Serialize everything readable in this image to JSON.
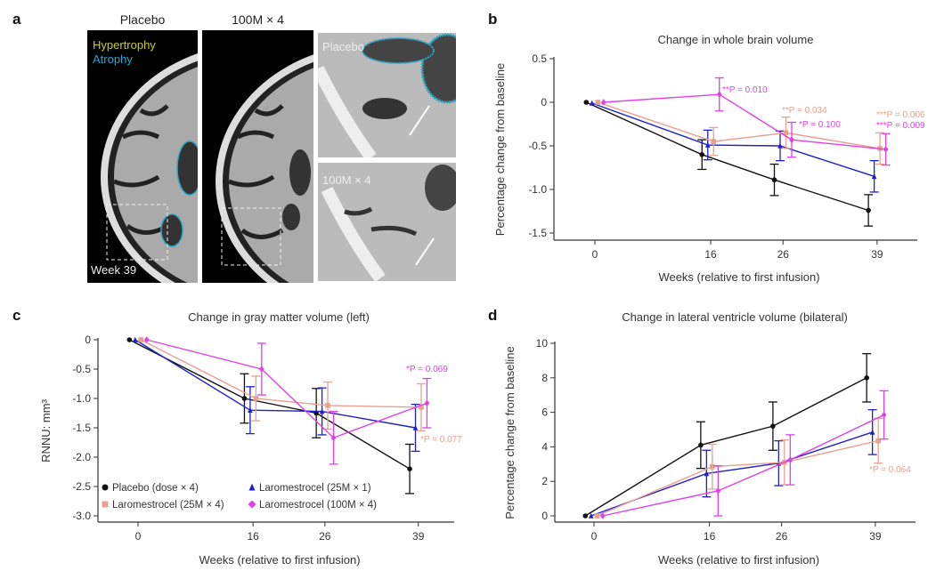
{
  "panel_a": {
    "label": "a",
    "titles": [
      "Placebo",
      "100M × 4"
    ],
    "legend_hypertrophy": "Hypertrophy",
    "legend_atrophy": "Atrophy",
    "week_label": "Week 39",
    "zoom_top_label": "Placebo",
    "zoom_bottom_label": "100M × 4",
    "colors": {
      "hypertrophy": "#c8c832",
      "atrophy": "#2aa6c8"
    }
  },
  "legend": [
    {
      "name": "Placebo (dose × 4)",
      "color": "#111111",
      "marker": "circle"
    },
    {
      "name": "Laromestrocel (25M × 1)",
      "color": "#2020c8",
      "marker": "triangle"
    },
    {
      "name": "Laromestrocel (25M × 4)",
      "color": "#e8a090",
      "marker": "square"
    },
    {
      "name": "Laromestrocel (100M × 4)",
      "color": "#e040e8",
      "marker": "diamond"
    }
  ],
  "chart_data": [
    {
      "panel": "b",
      "type": "line",
      "title": "Change in whole brain volume",
      "xlabel": "Weeks (relative to first infusion)",
      "ylabel": "Percentage change from baseline",
      "x": [
        0,
        16,
        26,
        39
      ],
      "xticks": [
        "0",
        "16",
        "26",
        "39"
      ],
      "yticks": [
        0.5,
        0,
        -0.5,
        -1.0,
        -1.5
      ],
      "ytick_labels": [
        "0.5",
        "0",
        "-0.5",
        "-1.0",
        "-1.5"
      ],
      "ylim": [
        -1.57,
        0.5
      ],
      "series": [
        {
          "name": "Placebo (dose × 4)",
          "values": [
            0,
            -0.6,
            -0.89,
            -1.24
          ],
          "errors": [
            0,
            0.17,
            0.18,
            0.18
          ]
        },
        {
          "name": "Laromestrocel (25M × 1)",
          "values": [
            -0.01,
            -0.49,
            -0.5,
            -0.85
          ],
          "errors": [
            0,
            0.17,
            0.17,
            0.18
          ]
        },
        {
          "name": "Laromestrocel (25M × 4)",
          "values": [
            0,
            -0.45,
            -0.35,
            -0.53
          ],
          "errors": [
            0,
            0.16,
            0.18,
            0.18
          ]
        },
        {
          "name": "Laromestrocel (100M × 4)",
          "values": [
            0,
            0.09,
            -0.43,
            -0.54
          ],
          "errors": [
            0,
            0.19,
            0.2,
            0.18
          ]
        }
      ],
      "annotations": [
        {
          "text": "**P = 0.010",
          "series": 3
        },
        {
          "text": "**P = 0.034",
          "series": 2
        },
        {
          "text": "*P = 0.100",
          "series": 3
        },
        {
          "text": "***P = 0.006",
          "series": 2
        },
        {
          "text": "***P = 0.009",
          "series": 3
        }
      ]
    },
    {
      "panel": "c",
      "type": "line",
      "title": "Change in gray matter volume (left)",
      "xlabel": "Weeks (relative to first infusion)",
      "ylabel": "RNNU: mm³",
      "x": [
        0,
        16,
        26,
        39
      ],
      "xticks": [
        "0",
        "16",
        "26",
        "39"
      ],
      "yticks": [
        0,
        -0.5,
        -1.0,
        -1.5,
        -2.0,
        -2.5,
        -3.0
      ],
      "ytick_labels": [
        "0",
        "-0.5",
        "-1.0",
        "-1.5",
        "-2.0",
        "-2.5",
        "-3.0"
      ],
      "ylim": [
        -3.1,
        0
      ],
      "legend_position": "bottom-left",
      "series": [
        {
          "name": "Placebo (dose × 4)",
          "values": [
            0,
            -1.0,
            -1.25,
            -2.2
          ],
          "errors": [
            0,
            0.42,
            0.42,
            0.42
          ]
        },
        {
          "name": "Laromestrocel (25M × 1)",
          "values": [
            0,
            -1.2,
            -1.22,
            -1.5
          ],
          "errors": [
            0,
            0.4,
            0.4,
            0.4
          ]
        },
        {
          "name": "Laromestrocel (25M × 4)",
          "values": [
            0,
            -1.0,
            -1.12,
            -1.15
          ],
          "errors": [
            0,
            0.38,
            0.4,
            0.4
          ]
        },
        {
          "name": "Laromestrocel (100M × 4)",
          "values": [
            0,
            -0.5,
            -1.67,
            -1.08
          ],
          "errors": [
            0,
            0.44,
            0.45,
            0.42
          ]
        }
      ],
      "annotations": [
        {
          "text": "*P = 0.069",
          "series": 3
        },
        {
          "text": "*P = 0.077",
          "series": 2
        }
      ]
    },
    {
      "panel": "d",
      "type": "line",
      "title": "Change in lateral ventricle volume (bilateral)",
      "xlabel": "Weeks (relative to first infusion)",
      "ylabel": "Percentage change from baseline",
      "x": [
        0,
        16,
        26,
        39
      ],
      "xticks": [
        "0",
        "16",
        "26",
        "39"
      ],
      "yticks": [
        10,
        8,
        6,
        4,
        2,
        0
      ],
      "ytick_labels": [
        "10",
        "8",
        "6",
        "4",
        "2",
        "0"
      ],
      "ylim": [
        -0.4,
        10
      ],
      "series": [
        {
          "name": "Placebo (dose × 4)",
          "values": [
            0,
            4.1,
            5.2,
            8.0
          ],
          "errors": [
            0,
            1.35,
            1.4,
            1.4
          ]
        },
        {
          "name": "Laromestrocel (25M × 1)",
          "values": [
            0,
            2.45,
            3.05,
            4.85
          ],
          "errors": [
            0,
            1.35,
            1.3,
            1.3
          ]
        },
        {
          "name": "Laromestrocel (25M × 4)",
          "values": [
            0,
            2.85,
            3.1,
            4.35
          ],
          "errors": [
            0,
            1.3,
            1.3,
            1.3
          ]
        },
        {
          "name": "Laromestrocel (100M × 4)",
          "values": [
            0,
            1.45,
            3.25,
            5.85
          ],
          "errors": [
            0,
            1.45,
            1.45,
            1.4
          ]
        }
      ],
      "annotations": [
        {
          "text": "*P = 0.064",
          "series": 2
        }
      ]
    }
  ]
}
